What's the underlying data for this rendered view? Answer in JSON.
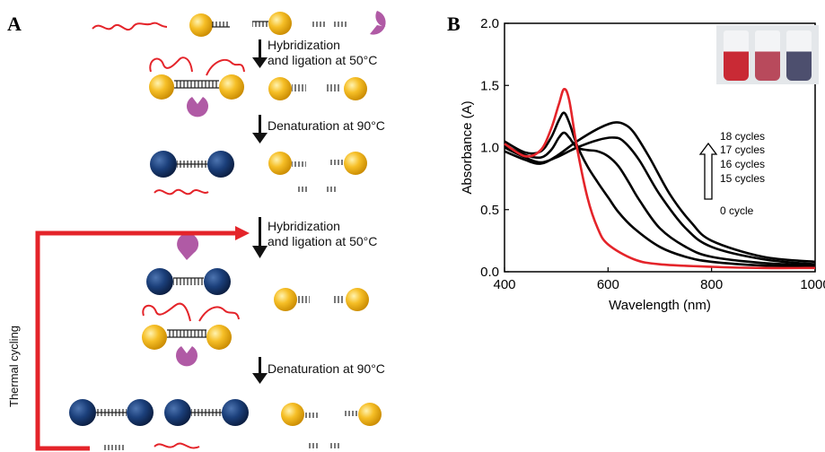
{
  "panel_a": {
    "letter": "A",
    "steps": {
      "hybridization_1": [
        "Hybridization",
        "and ligation at 50°C"
      ],
      "denaturation_1": "Denaturation at 90°C",
      "hybridization_2": [
        "Hybridization",
        "and ligation at 50°C"
      ],
      "denaturation_2": "Denaturation at 90°C"
    },
    "loop_label": "Thermal cycling",
    "colors": {
      "gold": "#f2b51b",
      "blue": "#163a6e",
      "red": "#e4242a",
      "enzyme": "#b05aa5",
      "arrow": "#e4242a"
    }
  },
  "panel_b": {
    "letter": "B",
    "legend_labels": [
      "18 cycles",
      "17 cycles",
      "16 cycles",
      "15 cycles",
      "0  cycle"
    ],
    "inset_vial_colors": [
      "#c92a35",
      "#b84a5c",
      "#4d4f6e"
    ]
  },
  "chart_data": {
    "type": "line",
    "xlabel": "Wavelength (nm)",
    "ylabel": "Absorbance (A)",
    "xlim": [
      400,
      1000
    ],
    "ylim": [
      0,
      2.0
    ],
    "xticks": [
      400,
      600,
      800,
      1000
    ],
    "yticks": [
      0.0,
      0.5,
      1.0,
      1.5,
      2.0
    ],
    "ytick_labels": [
      "0.0",
      "0.5",
      "1.0",
      "1.5",
      "2.0"
    ],
    "series": [
      {
        "name": "0  cycle",
        "color": "#e4242a",
        "x": [
          400,
          440,
          470,
          490,
          505,
          515,
          525,
          540,
          560,
          580,
          600,
          650,
          700,
          800,
          900,
          1000
        ],
        "y": [
          1.03,
          0.93,
          0.98,
          1.15,
          1.35,
          1.47,
          1.38,
          1.0,
          0.6,
          0.35,
          0.22,
          0.1,
          0.06,
          0.04,
          0.03,
          0.03
        ]
      },
      {
        "name": "15 cycles",
        "color": "#000000",
        "x": [
          400,
          440,
          470,
          490,
          505,
          515,
          525,
          540,
          560,
          580,
          600,
          620,
          650,
          700,
          750,
          800,
          900,
          1000
        ],
        "y": [
          1.05,
          0.96,
          0.97,
          1.08,
          1.22,
          1.28,
          1.2,
          1.02,
          0.85,
          0.72,
          0.6,
          0.48,
          0.35,
          0.2,
          0.12,
          0.08,
          0.05,
          0.04
        ]
      },
      {
        "name": "16 cycles",
        "color": "#000000",
        "x": [
          400,
          440,
          470,
          490,
          505,
          515,
          525,
          540,
          560,
          580,
          600,
          620,
          640,
          660,
          700,
          750,
          800,
          900,
          1000
        ],
        "y": [
          1.02,
          0.94,
          0.92,
          0.98,
          1.08,
          1.12,
          1.08,
          1.0,
          0.98,
          0.97,
          0.93,
          0.85,
          0.72,
          0.58,
          0.35,
          0.2,
          0.12,
          0.07,
          0.05
        ]
      },
      {
        "name": "17 cycles",
        "color": "#000000",
        "x": [
          400,
          440,
          470,
          500,
          540,
          580,
          610,
          630,
          660,
          700,
          750,
          800,
          900,
          1000
        ],
        "y": [
          1.0,
          0.92,
          0.88,
          0.92,
          1.0,
          1.06,
          1.08,
          1.05,
          0.9,
          0.62,
          0.35,
          0.2,
          0.1,
          0.06
        ]
      },
      {
        "name": "18 cycles",
        "color": "#000000",
        "x": [
          400,
          440,
          470,
          500,
          540,
          580,
          610,
          630,
          650,
          680,
          720,
          760,
          800,
          900,
          1000
        ],
        "y": [
          0.97,
          0.9,
          0.87,
          0.93,
          1.05,
          1.15,
          1.2,
          1.19,
          1.12,
          0.92,
          0.62,
          0.4,
          0.25,
          0.12,
          0.08
        ]
      }
    ]
  }
}
